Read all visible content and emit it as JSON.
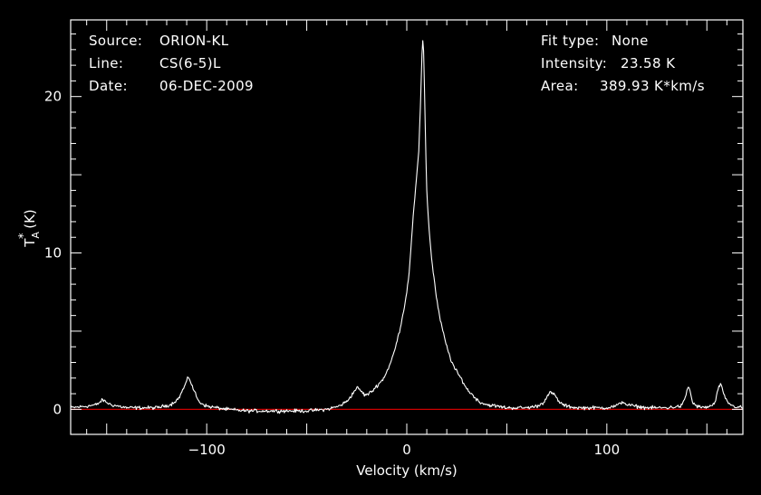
{
  "colors": {
    "background": "#000000",
    "foreground": "#ffffff",
    "baseline": "#cc0000"
  },
  "info": {
    "source_key": "Source:",
    "source_value": "ORION-KL",
    "line_key": "Line:",
    "line_value": "CS(6-5)L",
    "date_key": "Date:",
    "date_value": "06-DEC-2009",
    "fit_key": "Fit type:",
    "fit_value": "None",
    "intensity_key": "Intensity:",
    "intensity_value": "23.58 K",
    "area_key": "Area:",
    "area_value": "389.93 K*km/s"
  },
  "chart_data": {
    "type": "line",
    "xlabel": "Velocity (km/s)",
    "ylabel_main": "T",
    "ylabel_super": "*",
    "ylabel_sub": "A",
    "ylabel_unit": " (K)",
    "xlim": [
      -168,
      168
    ],
    "ylim": [
      -1.6,
      24.9
    ],
    "xticks": [
      -100,
      0,
      100
    ],
    "xtick_labels": [
      "−100",
      "0",
      "100"
    ],
    "yticks": [
      0,
      10,
      20
    ],
    "ytick_labels": [
      "0",
      "10",
      "20"
    ],
    "grid": false,
    "baseline_value": 0,
    "series": [
      {
        "x": [
          -168,
          -160,
          -155,
          -152,
          -148,
          -140,
          -125,
          -118,
          -114,
          -111,
          -109,
          -107,
          -104,
          -100,
          -90,
          -80,
          -70,
          -60,
          -50,
          -40,
          -34,
          -30,
          -27,
          -25,
          -23,
          -21,
          -19,
          -17,
          -15,
          -12,
          -10,
          -8,
          -6,
          -4,
          -2,
          0,
          1,
          2,
          3,
          4,
          5,
          6,
          7,
          7.5,
          8,
          8.5,
          9,
          9.5,
          10,
          10.5,
          11,
          12,
          13,
          14,
          15,
          16,
          18,
          20,
          22,
          24,
          26,
          28,
          30,
          33,
          36,
          40,
          45,
          50,
          55,
          60,
          65,
          68,
          70,
          72,
          74,
          76,
          78,
          80,
          85,
          90,
          95,
          100,
          104,
          106,
          108,
          110,
          114,
          120,
          130,
          137,
          139,
          140,
          141,
          142,
          143,
          145,
          148,
          152,
          154,
          155,
          156,
          157,
          158,
          160,
          163,
          168
        ],
        "y": [
          0.1,
          0.2,
          0.3,
          0.6,
          0.3,
          0.1,
          0.1,
          0.3,
          0.7,
          1.5,
          2.1,
          1.4,
          0.5,
          0.2,
          0.0,
          -0.1,
          -0.1,
          -0.1,
          -0.1,
          0.0,
          0.2,
          0.5,
          1.0,
          1.4,
          1.2,
          0.9,
          1.0,
          1.2,
          1.5,
          1.9,
          2.4,
          3.0,
          3.8,
          4.8,
          6.0,
          7.5,
          8.5,
          10.2,
          12.0,
          13.5,
          15.0,
          16.5,
          20.0,
          22.5,
          23.58,
          22.8,
          19.5,
          16.5,
          14.0,
          12.8,
          11.8,
          10.2,
          9.0,
          8.0,
          7.0,
          6.2,
          5.0,
          4.0,
          3.2,
          2.6,
          2.2,
          1.8,
          1.3,
          0.9,
          0.5,
          0.3,
          0.2,
          0.1,
          0.1,
          0.1,
          0.2,
          0.4,
          0.8,
          1.1,
          0.9,
          0.5,
          0.3,
          0.2,
          0.1,
          0.1,
          0.1,
          0.1,
          0.2,
          0.3,
          0.5,
          0.3,
          0.2,
          0.1,
          0.1,
          0.2,
          0.6,
          1.2,
          1.5,
          0.9,
          0.4,
          0.2,
          0.1,
          0.2,
          0.4,
          0.9,
          1.5,
          1.6,
          1.1,
          0.5,
          0.2,
          0.1
        ]
      }
    ]
  }
}
